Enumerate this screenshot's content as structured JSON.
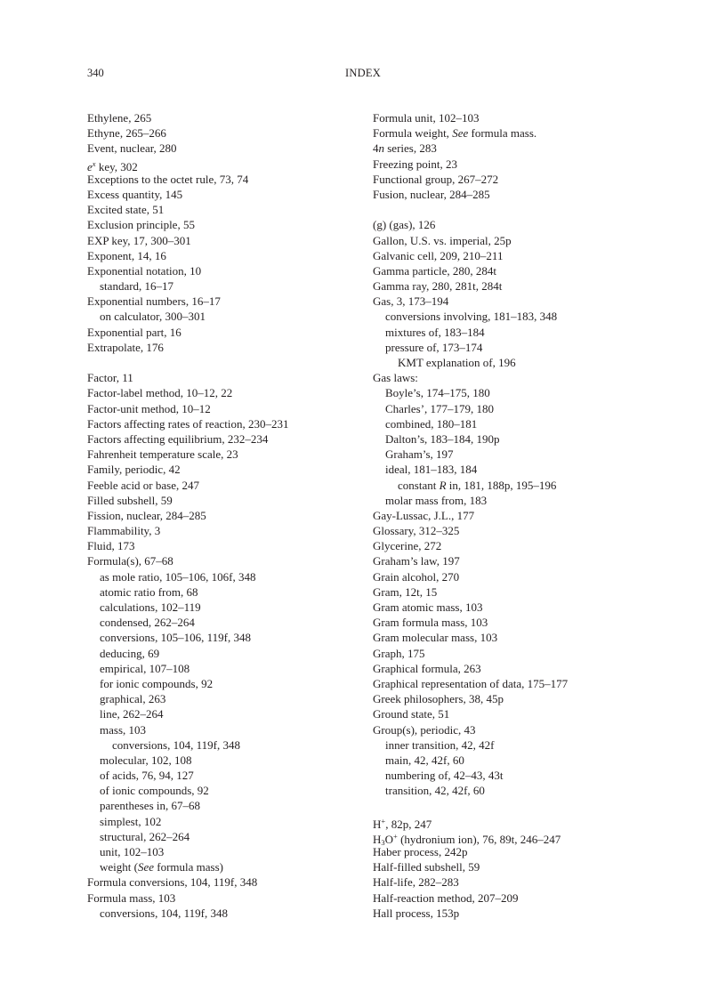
{
  "header": {
    "page_number": "340",
    "title": "INDEX"
  },
  "columns": [
    [
      {
        "level": 0,
        "parts": [
          {
            "t": "Ethylene, 265"
          }
        ]
      },
      {
        "level": 0,
        "parts": [
          {
            "t": "Ethyne, 265–266"
          }
        ]
      },
      {
        "level": 0,
        "parts": [
          {
            "t": "Event, nuclear, 280"
          }
        ]
      },
      {
        "level": 0,
        "parts": [
          {
            "t": "e",
            "s": "it"
          },
          {
            "t": "x",
            "s": "sup it"
          },
          {
            "t": " key, 302"
          }
        ]
      },
      {
        "level": 0,
        "parts": [
          {
            "t": "Exceptions to the octet rule, 73, 74"
          }
        ]
      },
      {
        "level": 0,
        "parts": [
          {
            "t": "Excess quantity, 145"
          }
        ]
      },
      {
        "level": 0,
        "parts": [
          {
            "t": "Excited state, 51"
          }
        ]
      },
      {
        "level": 0,
        "parts": [
          {
            "t": "Exclusion principle, 55"
          }
        ]
      },
      {
        "level": 0,
        "parts": [
          {
            "t": "EXP key, 17, 300–301"
          }
        ]
      },
      {
        "level": 0,
        "parts": [
          {
            "t": "Exponent, 14, 16"
          }
        ]
      },
      {
        "level": 0,
        "parts": [
          {
            "t": "Exponential notation, 10"
          }
        ]
      },
      {
        "level": 1,
        "parts": [
          {
            "t": "standard, 16–17"
          }
        ]
      },
      {
        "level": 0,
        "parts": [
          {
            "t": "Exponential numbers, 16–17"
          }
        ]
      },
      {
        "level": 1,
        "parts": [
          {
            "t": "on calculator, 300–301"
          }
        ]
      },
      {
        "level": 0,
        "parts": [
          {
            "t": "Exponential part, 16"
          }
        ]
      },
      {
        "level": 0,
        "parts": [
          {
            "t": "Extrapolate, 176"
          }
        ]
      },
      {
        "level": 0,
        "parts": []
      },
      {
        "level": 0,
        "parts": [
          {
            "t": "Factor, 11"
          }
        ]
      },
      {
        "level": 0,
        "parts": [
          {
            "t": "Factor-label method, 10–12, 22"
          }
        ]
      },
      {
        "level": 0,
        "parts": [
          {
            "t": "Factor-unit method, 10–12"
          }
        ]
      },
      {
        "level": 0,
        "parts": [
          {
            "t": "Factors affecting rates of reaction, 230–231"
          }
        ]
      },
      {
        "level": 0,
        "parts": [
          {
            "t": "Factors affecting equilibrium, 232–234"
          }
        ]
      },
      {
        "level": 0,
        "parts": [
          {
            "t": "Fahrenheit temperature scale, 23"
          }
        ]
      },
      {
        "level": 0,
        "parts": [
          {
            "t": "Family, periodic, 42"
          }
        ]
      },
      {
        "level": 0,
        "parts": [
          {
            "t": "Feeble acid or base, 247"
          }
        ]
      },
      {
        "level": 0,
        "parts": [
          {
            "t": "Filled subshell, 59"
          }
        ]
      },
      {
        "level": 0,
        "parts": [
          {
            "t": "Fission, nuclear, 284–285"
          }
        ]
      },
      {
        "level": 0,
        "parts": [
          {
            "t": "Flammability, 3"
          }
        ]
      },
      {
        "level": 0,
        "parts": [
          {
            "t": "Fluid, 173"
          }
        ]
      },
      {
        "level": 0,
        "parts": [
          {
            "t": "Formula(s), 67–68"
          }
        ]
      },
      {
        "level": 1,
        "parts": [
          {
            "t": "as mole ratio, 105–106, 106f, 348"
          }
        ]
      },
      {
        "level": 1,
        "parts": [
          {
            "t": "atomic ratio from, 68"
          }
        ]
      },
      {
        "level": 1,
        "parts": [
          {
            "t": "calculations, 102–119"
          }
        ]
      },
      {
        "level": 1,
        "parts": [
          {
            "t": "condensed, 262–264"
          }
        ]
      },
      {
        "level": 1,
        "parts": [
          {
            "t": "conversions, 105–106, 119f, 348"
          }
        ]
      },
      {
        "level": 1,
        "parts": [
          {
            "t": "deducing, 69"
          }
        ]
      },
      {
        "level": 1,
        "parts": [
          {
            "t": "empirical, 107–108"
          }
        ]
      },
      {
        "level": 1,
        "parts": [
          {
            "t": "for ionic compounds, 92"
          }
        ]
      },
      {
        "level": 1,
        "parts": [
          {
            "t": "graphical, 263"
          }
        ]
      },
      {
        "level": 1,
        "parts": [
          {
            "t": "line, 262–264"
          }
        ]
      },
      {
        "level": 1,
        "parts": [
          {
            "t": "mass, 103"
          }
        ]
      },
      {
        "level": 2,
        "parts": [
          {
            "t": "conversions, 104, 119f, 348"
          }
        ]
      },
      {
        "level": 1,
        "parts": [
          {
            "t": "molecular, 102, 108"
          }
        ]
      },
      {
        "level": 1,
        "parts": [
          {
            "t": "of acids, 76, 94, 127"
          }
        ]
      },
      {
        "level": 1,
        "parts": [
          {
            "t": "of ionic compounds, 92"
          }
        ]
      },
      {
        "level": 1,
        "parts": [
          {
            "t": "parentheses in, 67–68"
          }
        ]
      },
      {
        "level": 1,
        "parts": [
          {
            "t": "simplest, 102"
          }
        ]
      },
      {
        "level": 1,
        "parts": [
          {
            "t": "structural, 262–264"
          }
        ]
      },
      {
        "level": 1,
        "parts": [
          {
            "t": "unit, 102–103"
          }
        ]
      },
      {
        "level": 1,
        "parts": [
          {
            "t": "weight ("
          },
          {
            "t": "See",
            "s": "it"
          },
          {
            "t": " formula mass)"
          }
        ]
      },
      {
        "level": 0,
        "parts": [
          {
            "t": "Formula conversions, 104, 119f, 348"
          }
        ]
      },
      {
        "level": 0,
        "parts": [
          {
            "t": "Formula mass, 103"
          }
        ]
      },
      {
        "level": 1,
        "parts": [
          {
            "t": "conversions, 104, 119f, 348"
          }
        ]
      }
    ],
    [
      {
        "level": 0,
        "parts": [
          {
            "t": "Formula unit, 102–103"
          }
        ]
      },
      {
        "level": 0,
        "parts": [
          {
            "t": "Formula weight, "
          },
          {
            "t": "See",
            "s": "it"
          },
          {
            "t": " formula mass."
          }
        ]
      },
      {
        "level": 0,
        "parts": [
          {
            "t": "4"
          },
          {
            "t": "n",
            "s": "it"
          },
          {
            "t": " series, 283"
          }
        ]
      },
      {
        "level": 0,
        "parts": [
          {
            "t": "Freezing point, 23"
          }
        ]
      },
      {
        "level": 0,
        "parts": [
          {
            "t": "Functional group, 267–272"
          }
        ]
      },
      {
        "level": 0,
        "parts": [
          {
            "t": "Fusion, nuclear, 284–285"
          }
        ]
      },
      {
        "level": 0,
        "parts": []
      },
      {
        "level": 0,
        "parts": [
          {
            "t": "(g) (gas), 126"
          }
        ]
      },
      {
        "level": 0,
        "parts": [
          {
            "t": "Gallon, U.S. vs. imperial, 25p"
          }
        ]
      },
      {
        "level": 0,
        "parts": [
          {
            "t": "Galvanic cell, 209, 210–211"
          }
        ]
      },
      {
        "level": 0,
        "parts": [
          {
            "t": "Gamma particle, 280, 284t"
          }
        ]
      },
      {
        "level": 0,
        "parts": [
          {
            "t": "Gamma ray, 280, 281t, 284t"
          }
        ]
      },
      {
        "level": 0,
        "parts": [
          {
            "t": "Gas, 3, 173–194"
          }
        ]
      },
      {
        "level": 1,
        "parts": [
          {
            "t": "conversions involving, 181–183, 348"
          }
        ]
      },
      {
        "level": 1,
        "parts": [
          {
            "t": "mixtures of, 183–184"
          }
        ]
      },
      {
        "level": 1,
        "parts": [
          {
            "t": "pressure of, 173–174"
          }
        ]
      },
      {
        "level": 2,
        "parts": [
          {
            "t": "KMT explanation of, 196"
          }
        ]
      },
      {
        "level": 0,
        "parts": [
          {
            "t": "Gas laws:"
          }
        ]
      },
      {
        "level": 1,
        "parts": [
          {
            "t": "Boyle’s, 174–175, 180"
          }
        ]
      },
      {
        "level": 1,
        "parts": [
          {
            "t": "Charles’, 177–179, 180"
          }
        ]
      },
      {
        "level": 1,
        "parts": [
          {
            "t": "combined, 180–181"
          }
        ]
      },
      {
        "level": 1,
        "parts": [
          {
            "t": "Dalton’s, 183–184, 190p"
          }
        ]
      },
      {
        "level": 1,
        "parts": [
          {
            "t": "Graham’s, 197"
          }
        ]
      },
      {
        "level": 1,
        "parts": [
          {
            "t": "ideal, 181–183, 184"
          }
        ]
      },
      {
        "level": 2,
        "parts": [
          {
            "t": "constant "
          },
          {
            "t": "R",
            "s": "it"
          },
          {
            "t": " in, 181, 188p, 195–196"
          }
        ]
      },
      {
        "level": 1,
        "parts": [
          {
            "t": "molar mass from, 183"
          }
        ]
      },
      {
        "level": 0,
        "parts": [
          {
            "t": "Gay-Lussac, J.L., 177"
          }
        ]
      },
      {
        "level": 0,
        "parts": [
          {
            "t": "Glossary, 312–325"
          }
        ]
      },
      {
        "level": 0,
        "parts": [
          {
            "t": "Glycerine, 272"
          }
        ]
      },
      {
        "level": 0,
        "parts": [
          {
            "t": "Graham’s law, 197"
          }
        ]
      },
      {
        "level": 0,
        "parts": [
          {
            "t": "Grain alcohol, 270"
          }
        ]
      },
      {
        "level": 0,
        "parts": [
          {
            "t": "Gram, 12t, 15"
          }
        ]
      },
      {
        "level": 0,
        "parts": [
          {
            "t": "Gram atomic mass, 103"
          }
        ]
      },
      {
        "level": 0,
        "parts": [
          {
            "t": "Gram formula mass, 103"
          }
        ]
      },
      {
        "level": 0,
        "parts": [
          {
            "t": "Gram molecular mass, 103"
          }
        ]
      },
      {
        "level": 0,
        "parts": [
          {
            "t": "Graph, 175"
          }
        ]
      },
      {
        "level": 0,
        "parts": [
          {
            "t": "Graphical formula, 263"
          }
        ]
      },
      {
        "level": 0,
        "parts": [
          {
            "t": "Graphical representation of data, 175–177"
          }
        ]
      },
      {
        "level": 0,
        "parts": [
          {
            "t": "Greek philosophers, 38, 45p"
          }
        ]
      },
      {
        "level": 0,
        "parts": [
          {
            "t": "Ground state, 51"
          }
        ]
      },
      {
        "level": 0,
        "parts": [
          {
            "t": "Group(s), periodic, 43"
          }
        ]
      },
      {
        "level": 1,
        "parts": [
          {
            "t": "inner transition, 42, 42f"
          }
        ]
      },
      {
        "level": 1,
        "parts": [
          {
            "t": "main, 42, 42f, 60"
          }
        ]
      },
      {
        "level": 1,
        "parts": [
          {
            "t": "numbering of, 42–43, 43t"
          }
        ]
      },
      {
        "level": 1,
        "parts": [
          {
            "t": "transition, 42, 42f, 60"
          }
        ]
      },
      {
        "level": 0,
        "parts": []
      },
      {
        "level": 0,
        "parts": [
          {
            "t": "H"
          },
          {
            "t": "+",
            "s": "sup"
          },
          {
            "t": ", 82p, 247"
          }
        ]
      },
      {
        "level": 0,
        "parts": [
          {
            "t": "H"
          },
          {
            "t": "3",
            "s": "sub"
          },
          {
            "t": "O"
          },
          {
            "t": "+",
            "s": "sup"
          },
          {
            "t": " (hydronium ion), 76, 89t, 246–247"
          }
        ]
      },
      {
        "level": 0,
        "parts": [
          {
            "t": "Haber process, 242p"
          }
        ]
      },
      {
        "level": 0,
        "parts": [
          {
            "t": "Half-filled subshell, 59"
          }
        ]
      },
      {
        "level": 0,
        "parts": [
          {
            "t": "Half-life, 282–283"
          }
        ]
      },
      {
        "level": 0,
        "parts": [
          {
            "t": "Half-reaction method, 207–209"
          }
        ]
      },
      {
        "level": 0,
        "parts": [
          {
            "t": "Hall process, 153p"
          }
        ]
      }
    ]
  ]
}
